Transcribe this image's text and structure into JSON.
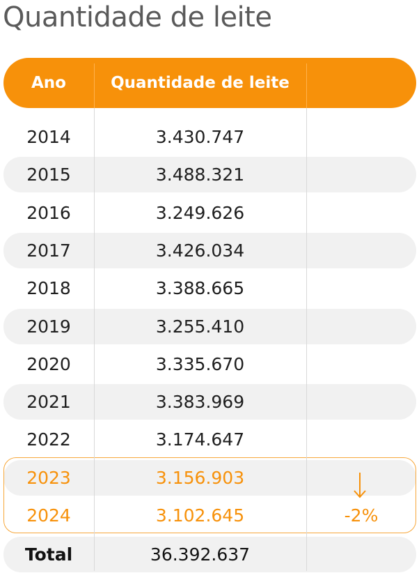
{
  "page_title": "Quantidade de leite",
  "colors": {
    "accent": "#f7910a",
    "row_shade": "#f1f1f1",
    "text": "#1e1e1e",
    "title": "#5a5a5a"
  },
  "chart_data": {
    "type": "table",
    "columns": [
      "Ano",
      "Quantidade de leite",
      ""
    ],
    "rows": [
      {
        "year": "2014",
        "quantity": "3.430.747"
      },
      {
        "year": "2015",
        "quantity": "3.488.321"
      },
      {
        "year": "2016",
        "quantity": "3.249.626"
      },
      {
        "year": "2017",
        "quantity": "3.426.034"
      },
      {
        "year": "2018",
        "quantity": "3.388.665"
      },
      {
        "year": "2019",
        "quantity": "3.255.410"
      },
      {
        "year": "2020",
        "quantity": "3.335.670"
      },
      {
        "year": "2021",
        "quantity": "3.383.969"
      },
      {
        "year": "2022",
        "quantity": "3.174.647"
      },
      {
        "year": "2023",
        "quantity": "3.156.903"
      },
      {
        "year": "2024",
        "quantity": "3.102.645"
      }
    ],
    "highlighted_rows": [
      "2023",
      "2024"
    ],
    "change_indicator": {
      "icon": "arrow-down-icon",
      "text": "-2%"
    },
    "total": {
      "label": "Total",
      "quantity": "36.392.637"
    }
  }
}
